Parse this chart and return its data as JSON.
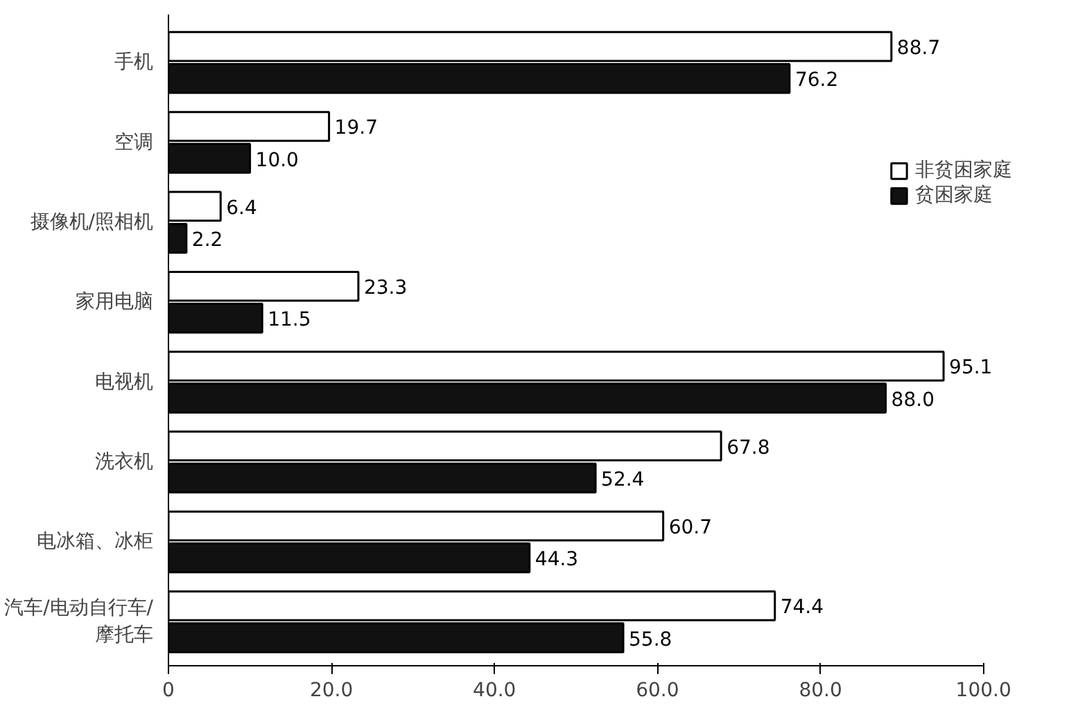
{
  "chart_data": {
    "type": "bar",
    "orientation": "horizontal",
    "categories": [
      "手机",
      "空调",
      "摄像机/照相机",
      "家用电脑",
      "电视机",
      "洗衣机",
      "电冰箱、冰柜",
      "汽车/电动自行车/\n摩托车"
    ],
    "series": [
      {
        "name": "非贫困家庭",
        "color": "#ffffff",
        "values": [
          88.7,
          19.7,
          6.4,
          23.3,
          95.1,
          67.8,
          60.7,
          74.4
        ],
        "value_labels": [
          "88.7",
          "19.7",
          "6.4",
          "23.3",
          "95.1",
          "67.8",
          "60.7",
          "74.4"
        ]
      },
      {
        "name": "贫困家庭",
        "color": "#111111",
        "values": [
          76.2,
          10.0,
          2.2,
          11.5,
          88.0,
          52.4,
          44.3,
          55.8
        ],
        "value_labels": [
          "76.2",
          "10.0",
          "2.2",
          "11.5",
          "88.0",
          "52.4",
          "44.3",
          "55.8"
        ]
      }
    ],
    "xlim": [
      0,
      100
    ],
    "xticks": [
      0,
      {
        "value": 20,
        "label": "20.0"
      },
      {
        "value": 40,
        "label": "40.0"
      },
      {
        "value": 60,
        "label": "60.0"
      },
      {
        "value": 80,
        "label": "80.0"
      },
      {
        "value": 100,
        "label": "100.0"
      }
    ],
    "legend": "top right",
    "grid": false
  }
}
